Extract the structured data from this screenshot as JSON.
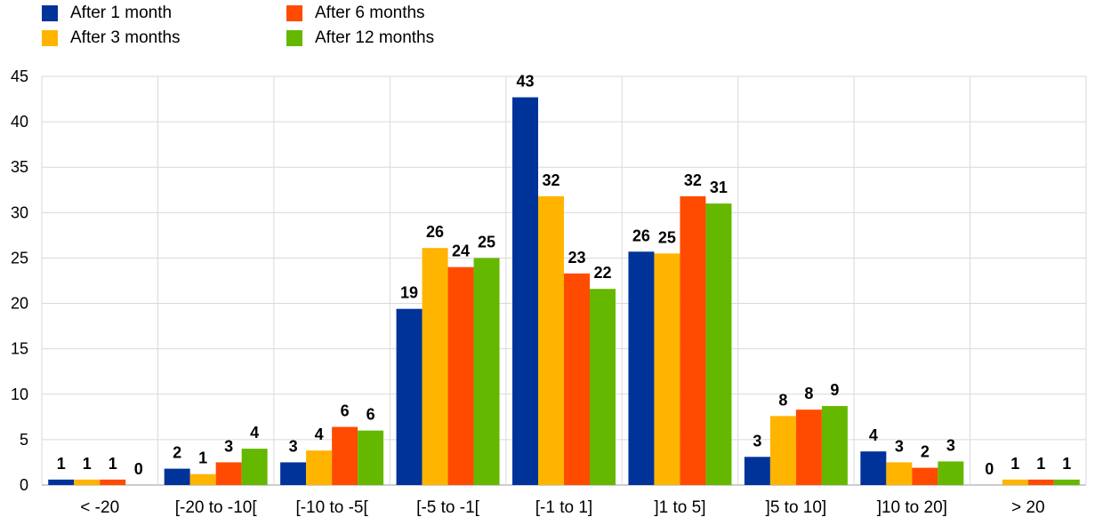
{
  "chart_data": {
    "type": "bar",
    "title": "",
    "xlabel": "",
    "ylabel": "",
    "ylim": [
      0,
      45
    ],
    "yticks": [
      0,
      5,
      10,
      15,
      20,
      25,
      30,
      35,
      40,
      45
    ],
    "grid": true,
    "legend_position": "top-left",
    "categories": [
      "< -20",
      "[-20 to -10[",
      "[-10 to -5[",
      "[-5 to -1[",
      "[-1 to 1]",
      "]1 to 5]",
      "]5 to 10]",
      "]10 to 20]",
      "> 20"
    ],
    "series": [
      {
        "name": "After 1 month",
        "color": "#003399",
        "values": [
          0.6,
          1.8,
          2.5,
          19.4,
          42.7,
          25.7,
          3.1,
          3.7,
          0.0
        ],
        "labels": [
          "1",
          "2",
          "3",
          "19",
          "43",
          "26",
          "3",
          "4",
          "0"
        ]
      },
      {
        "name": "After 3 months",
        "color": "#FFB400",
        "values": [
          0.6,
          1.2,
          3.8,
          26.1,
          31.8,
          25.5,
          7.6,
          2.5,
          0.6
        ],
        "labels": [
          "1",
          "1",
          "4",
          "26",
          "32",
          "25",
          "8",
          "3",
          "1"
        ]
      },
      {
        "name": "After 6 months",
        "color": "#FF4B00",
        "values": [
          0.6,
          2.5,
          6.4,
          24.0,
          23.3,
          31.8,
          8.3,
          1.9,
          0.6
        ],
        "labels": [
          "1",
          "3",
          "6",
          "24",
          "23",
          "32",
          "8",
          "2",
          "1"
        ]
      },
      {
        "name": "After 12 months",
        "color": "#65B800",
        "values": [
          0.0,
          4.0,
          6.0,
          25.0,
          21.6,
          31.0,
          8.7,
          2.6,
          0.6
        ],
        "labels": [
          "0",
          "4",
          "6",
          "25",
          "22",
          "31",
          "9",
          "3",
          "1"
        ]
      }
    ]
  }
}
